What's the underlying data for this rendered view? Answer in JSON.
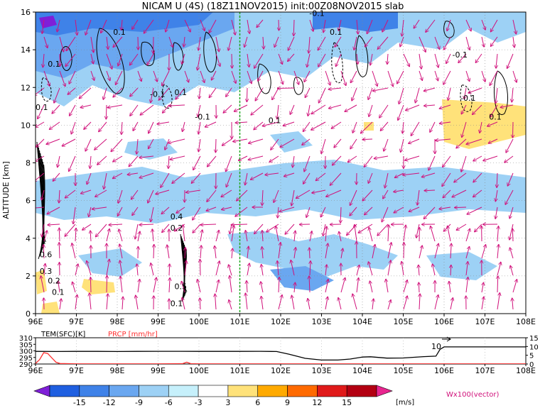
{
  "chart_data": [
    {
      "type": "heatmap",
      "title": "NICAM U (4S) (18Z11NOV2015) init:00Z08NOV2015 slab",
      "xlabel": "",
      "ylabel": "ALTITUDE [km]",
      "x_ticks": [
        "96E",
        "97E",
        "98E",
        "99E",
        "100E",
        "101E",
        "102E",
        "103E",
        "104E",
        "105E",
        "106E",
        "107E",
        "108E"
      ],
      "y_ticks": [
        "0",
        "2",
        "4",
        "6",
        "8",
        "10",
        "12",
        "14",
        "16"
      ],
      "xlim": [
        96,
        108
      ],
      "ylim": [
        0,
        16
      ],
      "x_unit": "degrees east",
      "y_unit": "km",
      "grid": true,
      "vertical_marker_lon": 101,
      "contour_labels": [
        {
          "text": "0.1",
          "lon": 96.3,
          "alt": 13.1
        },
        {
          "text": "0.1",
          "lon": 97.9,
          "alt": 14.8
        },
        {
          "text": "-0.1",
          "lon": 98.8,
          "alt": 11.5
        },
        {
          "text": "0.1",
          "lon": 99.4,
          "alt": 11.6
        },
        {
          "text": "-0.1",
          "lon": 99.9,
          "alt": 10.3
        },
        {
          "text": "0.1",
          "lon": 96.0,
          "alt": 10.8
        },
        {
          "text": "0.1",
          "lon": 101.7,
          "alt": 10.1
        },
        {
          "text": "-0.1",
          "lon": 102.7,
          "alt": 15.8
        },
        {
          "text": "0.1",
          "lon": 103.2,
          "alt": 14.8
        },
        {
          "text": "-0.1",
          "lon": 106.2,
          "alt": 13.6
        },
        {
          "text": "-0.1",
          "lon": 106.4,
          "alt": 11.3
        },
        {
          "text": "0.1",
          "lon": 107.1,
          "alt": 10.3
        },
        {
          "text": "0.4",
          "lon": 99.3,
          "alt": 5.0
        },
        {
          "text": "0.2",
          "lon": 99.3,
          "alt": 4.4
        },
        {
          "text": "0.6",
          "lon": 96.1,
          "alt": 3.0
        },
        {
          "text": "0.3",
          "lon": 96.1,
          "alt": 2.1
        },
        {
          "text": "0.2",
          "lon": 96.3,
          "alt": 1.6
        },
        {
          "text": "0.1",
          "lon": 96.4,
          "alt": 1.0
        },
        {
          "text": "0.5",
          "lon": 99.4,
          "alt": 1.3
        },
        {
          "text": "0.1",
          "lon": 99.3,
          "alt": 0.4
        }
      ],
      "colorbar": {
        "levels": [
          "-15",
          "-12",
          "-9",
          "-6",
          "-3",
          "3",
          "6",
          "9",
          "12",
          "15"
        ],
        "unit": "[m/s]",
        "colors": [
          "#7f1fd8",
          "#1f5fe0",
          "#3f82e8",
          "#6aa7f0",
          "#9dd1f5",
          "#c6f0fb",
          "#ffffff",
          "#ffe27a",
          "#ffaa00",
          "#ff6a00",
          "#e01a1a",
          "#b30012",
          "#e8258f"
        ]
      },
      "vector_note": "Wx100(vector)"
    },
    {
      "type": "line",
      "xlim": [
        96,
        108
      ],
      "x_ticks": [
        "96E",
        "97E",
        "98E",
        "99E",
        "100E",
        "101E",
        "102E",
        "103E",
        "104E",
        "105E",
        "106E",
        "107E",
        "108E"
      ],
      "left_axis_label": "TEM(SFC)[K]",
      "left_ticks": [
        "290",
        "295",
        "300",
        "305",
        "310"
      ],
      "left_range": [
        290,
        310
      ],
      "right_axis_label": "PRCP [mm/hr]",
      "right_ticks": [
        "0",
        "5",
        "10",
        "15"
      ],
      "right_range": [
        0,
        15
      ],
      "annotation": "10",
      "series": [
        {
          "role": "surface temperature",
          "color": "#000000",
          "x": [
            96,
            96.5,
            97,
            97.5,
            98,
            98.5,
            99,
            99.5,
            100,
            100.5,
            101,
            101.5,
            101.9,
            102.2,
            102.6,
            103,
            103.4,
            103.7,
            104,
            104.2,
            104.6,
            105,
            105.5,
            105.8,
            105.9,
            106,
            106.5,
            107,
            107.5,
            108
          ],
          "y": [
            299.6,
            299.5,
            299.6,
            299.6,
            299.5,
            299.6,
            299.7,
            299.7,
            299.6,
            299.6,
            299.6,
            299.7,
            299.5,
            297.5,
            294.3,
            293.0,
            293.0,
            293.8,
            295.3,
            295.5,
            294.5,
            294.6,
            295.6,
            296.0,
            301.2,
            303.0,
            303.0,
            303.0,
            303.0,
            303.0
          ]
        },
        {
          "role": "precipitation",
          "color": "#ff3030",
          "x": [
            96,
            96.1,
            96.2,
            96.3,
            96.4,
            96.5,
            96.6,
            97,
            98,
            99,
            99.6,
            99.7,
            99.8,
            100,
            101,
            102,
            103,
            104,
            105,
            106,
            107,
            108
          ],
          "y": [
            0.3,
            2.5,
            6.5,
            6.0,
            3.5,
            1.0,
            0.3,
            0.1,
            0.1,
            0.1,
            0.2,
            1.0,
            0.2,
            0.1,
            0.1,
            0.1,
            0.1,
            0.1,
            0.1,
            0.1,
            0.1,
            0.1
          ]
        }
      ]
    }
  ]
}
